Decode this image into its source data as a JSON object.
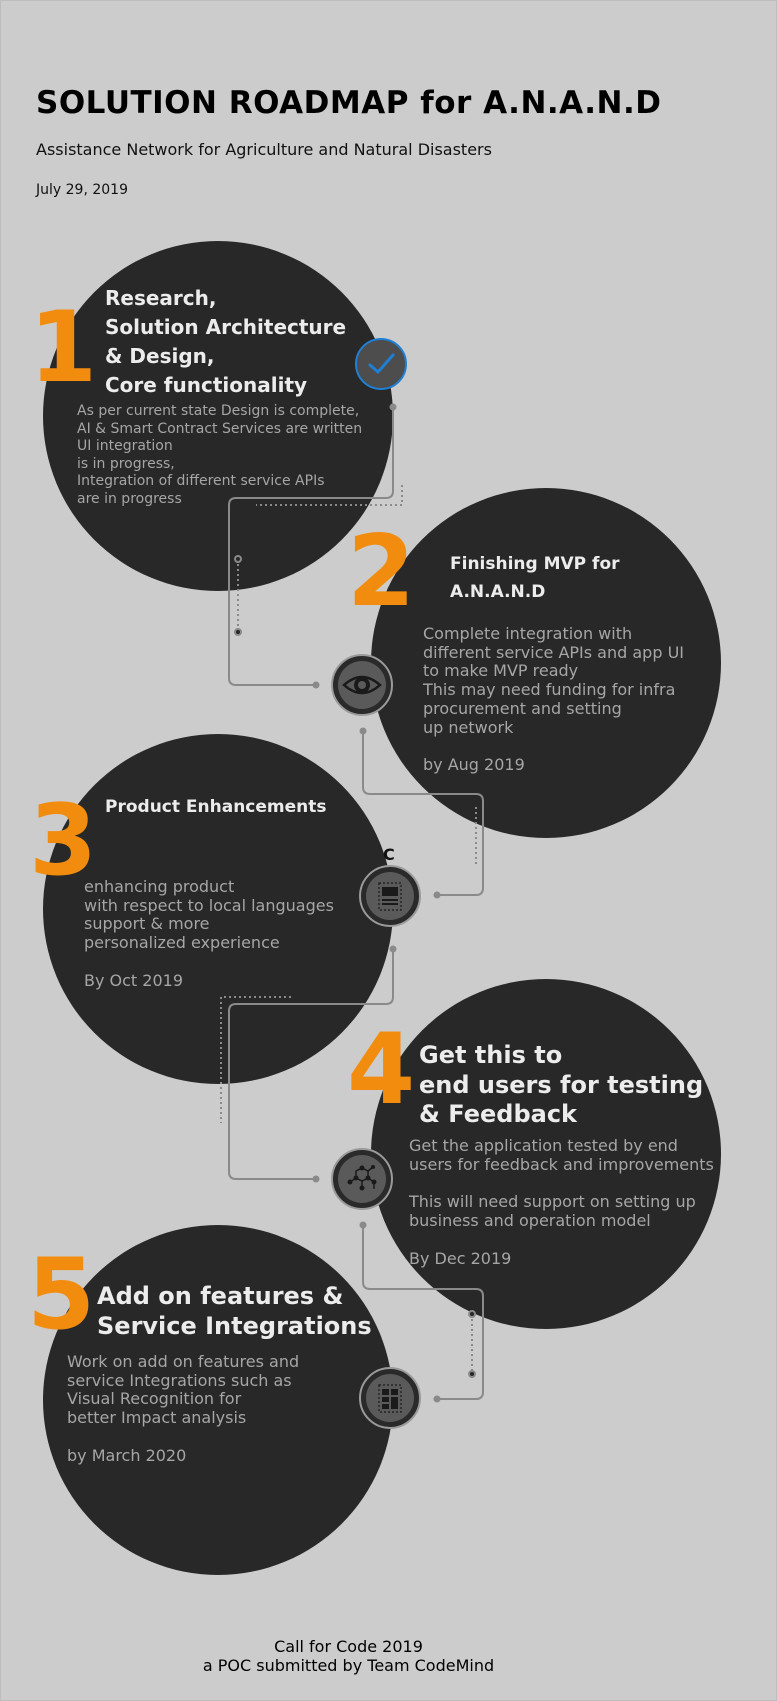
{
  "header": {
    "title": "SOLUTION ROADMAP for A.N.A.N.D",
    "subtitle": "Assistance Network for Agriculture and Natural Disasters",
    "date": "July 29, 2019"
  },
  "colors": {
    "background": "#cccccc",
    "circle": "#282828",
    "accent_orange": "#f28c0f",
    "check_blue": "#1e7fd4",
    "heading_text": "#ececec",
    "body_text": "#a6a6a6"
  },
  "steps": [
    {
      "number": "1",
      "heading": [
        "Research,",
        "Solution Architecture",
        "& Design,",
        "Core functionality"
      ],
      "body": [
        "As per current state Design is complete,",
        "AI & Smart Contract Services are written",
        "UI integration",
        "is in progress,",
        "Integration of different service APIs",
        "are in progress"
      ],
      "icon": "checkmark-icon"
    },
    {
      "number": "2",
      "heading": [
        "Finishing MVP for",
        "A.N.A.N.D"
      ],
      "body": [
        "Complete integration with",
        "different service APIs and app UI",
        "to make MVP ready",
        "This may need funding for infra",
        "procurement and setting",
        "up network"
      ],
      "due": "by Aug 2019",
      "icon": "eye-icon"
    },
    {
      "number": "3",
      "heading": [
        "Product Enhancements"
      ],
      "body": [
        "enhancing product",
        "with respect to local languages",
        "support & more",
        "personalized experience"
      ],
      "due": "By Oct 2019",
      "icon": "document-icon",
      "icon_label": "C"
    },
    {
      "number": "4",
      "heading": [
        "Get this to",
        "end users for testing",
        "& Feedback"
      ],
      "body": [
        "Get the application tested by end",
        "users for feedback and improvements",
        "",
        "This will need support on setting up",
        "business and operation model"
      ],
      "due": "By Dec 2019",
      "icon": "molecule-icon"
    },
    {
      "number": "5",
      "heading": [
        "Add on features &",
        "Service Integrations"
      ],
      "body": [
        "Work on add on features and",
        "service Integrations such as",
        "Visual Recognition for",
        "better Impact analysis"
      ],
      "due": "by March 2020",
      "icon": "grid-layout-icon"
    }
  ],
  "footer": {
    "line1": "Call for Code 2019",
    "line2": "a POC submitted by Team CodeMind"
  }
}
